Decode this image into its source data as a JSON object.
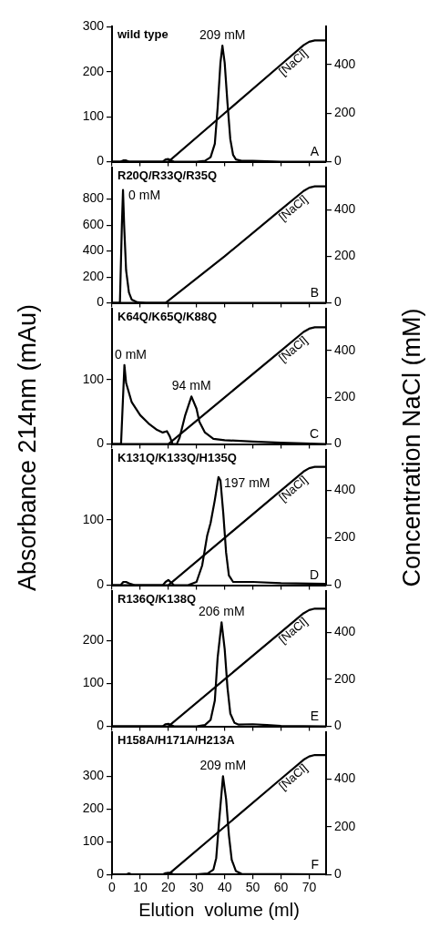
{
  "chart_data": [
    {
      "type": "line",
      "title": "wild type",
      "ylabel": "Absorbance 214nm (mAu)",
      "y2label": "Concentration NaCl (mM)",
      "xlim": [
        0,
        76
      ],
      "xticks": [
        0,
        10,
        20,
        30,
        40,
        50,
        60,
        70
      ],
      "ylim": [
        0,
        300
      ],
      "yticks": [
        0,
        100,
        200,
        300
      ],
      "y2lim": [
        0,
        556
      ],
      "y2ticks": [
        0,
        200,
        400
      ],
      "tick_labels": "y",
      "marker": "none",
      "series": [
        {
          "color": "#000000",
          "x": [
            0,
            3,
            4,
            5,
            6,
            8,
            18,
            19,
            20,
            21,
            22,
            30,
            33,
            35,
            36.5,
            37.5,
            38.5,
            39.2,
            40,
            41,
            42,
            43,
            44,
            46,
            50,
            60,
            76
          ],
          "values": [
            0,
            0,
            3,
            3,
            0,
            0,
            0,
            5,
            6,
            3,
            0,
            0,
            2,
            10,
            40,
            120,
            220,
            258,
            220,
            130,
            50,
            15,
            5,
            2,
            2,
            0,
            0
          ]
        },
        {
          "name": "[NaCl]",
          "axis": "y2",
          "color": "#000000",
          "x": [
            0,
            20,
            40,
            60,
            68,
            70,
            72,
            76
          ],
          "values": [
            0,
            0,
            200,
            400,
            480,
            494,
            500,
            500
          ]
        }
      ],
      "annotations": [
        {
          "text": "209 mM",
          "x": 39.2,
          "y": 258
        },
        "A"
      ]
    },
    {
      "type": "line",
      "title": "R20Q/R33Q/R35Q",
      "xlim": [
        0,
        76
      ],
      "xticks": [
        0,
        10,
        20,
        30,
        40,
        50,
        60,
        70
      ],
      "ylim": [
        0,
        1040
      ],
      "yticks": [
        0,
        200,
        400,
        600,
        800
      ],
      "y2lim": [
        0,
        579
      ],
      "y2ticks": [
        0,
        200,
        400
      ],
      "tick_labels": "y",
      "marker": "none",
      "series": [
        {
          "color": "#000000",
          "x": [
            0,
            2.8,
            3.5,
            3.9,
            4.3,
            5,
            6,
            7,
            9,
            12,
            76
          ],
          "values": [
            0,
            0,
            600,
            870,
            600,
            250,
            80,
            25,
            5,
            0,
            0
          ]
        },
        {
          "name": "[NaCl]",
          "axis": "y2",
          "color": "#000000",
          "x": [
            0,
            19,
            40,
            60,
            68,
            70,
            72,
            76
          ],
          "values": [
            0,
            0,
            200,
            400,
            480,
            494,
            500,
            500
          ]
        }
      ],
      "annotations": [
        {
          "text": "0 mM",
          "x": 3.9,
          "y": 870
        },
        "B"
      ]
    },
    {
      "type": "line",
      "title": "K64Q/K65Q/K88Q",
      "xlim": [
        0,
        76
      ],
      "xticks": [
        0,
        10,
        20,
        30,
        40,
        50,
        60,
        70
      ],
      "ylim": [
        0,
        210
      ],
      "yticks": [
        0,
        100
      ],
      "y2lim": [
        0,
        578
      ],
      "y2ticks": [
        0,
        200,
        400
      ],
      "tick_labels": "y",
      "marker": "none",
      "series": [
        {
          "color": "#000000",
          "x": [
            0,
            3.2,
            4.4,
            5,
            7,
            10,
            13,
            16,
            18,
            19.5,
            20.5,
            21.5,
            23,
            24,
            26,
            28.2,
            30,
            31,
            33,
            36,
            40,
            50,
            60,
            76
          ],
          "values": [
            0,
            0,
            123,
            95,
            65,
            45,
            32,
            22,
            18,
            20,
            12,
            0,
            0,
            10,
            45,
            74,
            55,
            35,
            18,
            8,
            6,
            4,
            2,
            0
          ]
        },
        {
          "name": "[NaCl]",
          "axis": "y2",
          "color": "#000000",
          "x": [
            0,
            20,
            40,
            60,
            68,
            70,
            72,
            76
          ],
          "values": [
            0,
            0,
            200,
            400,
            480,
            494,
            500,
            500
          ]
        }
      ],
      "annotations": [
        {
          "text": "0 mM",
          "x": 4.4,
          "y": 123
        },
        {
          "text": "94 mM",
          "x": 28.2,
          "y": 74
        },
        "C"
      ]
    },
    {
      "type": "line",
      "title": "K131Q/K133Q/H135Q",
      "xlim": [
        0,
        76
      ],
      "xticks": [
        0,
        10,
        20,
        30,
        40,
        50,
        60,
        70
      ],
      "ylim": [
        0,
        206
      ],
      "yticks": [
        0,
        100
      ],
      "y2lim": [
        0,
        570
      ],
      "y2ticks": [
        0,
        200,
        400
      ],
      "tick_labels": "y",
      "marker": "none",
      "series": [
        {
          "color": "#000000",
          "x": [
            0,
            3,
            4,
            5,
            6,
            8,
            18,
            19,
            20,
            21,
            22,
            27,
            30,
            32,
            33.8,
            35,
            36.5,
            37.8,
            38.5,
            39.5,
            40.5,
            41.5,
            43,
            50,
            60,
            76
          ],
          "values": [
            0,
            0,
            5,
            5,
            3,
            0,
            0,
            5,
            8,
            4,
            0,
            0,
            5,
            30,
            76,
            95,
            130,
            165,
            160,
            110,
            50,
            15,
            5,
            5,
            3,
            2
          ]
        },
        {
          "name": "[NaCl]",
          "axis": "y2",
          "color": "#000000",
          "x": [
            0,
            20,
            40,
            60,
            68,
            70,
            72,
            76
          ],
          "values": [
            0,
            0,
            200,
            400,
            480,
            494,
            500,
            500
          ]
        }
      ],
      "annotations": [
        {
          "text": "197 mM",
          "x": 37.8,
          "y": 165
        },
        "D"
      ]
    },
    {
      "type": "line",
      "title": "R136Q/K138Q",
      "xlim": [
        0,
        76
      ],
      "xticks": [
        0,
        10,
        20,
        30,
        40,
        50,
        60,
        70
      ],
      "ylim": [
        0,
        314
      ],
      "yticks": [
        0,
        100,
        200
      ],
      "y2lim": [
        0,
        573
      ],
      "y2ticks": [
        0,
        200,
        400
      ],
      "tick_labels": "y",
      "marker": "none",
      "series": [
        {
          "color": "#000000",
          "x": [
            0,
            18,
            19,
            20,
            21,
            22,
            30,
            33,
            35,
            36.5,
            37.5,
            38.9,
            40,
            41,
            42,
            43.5,
            45,
            50,
            55,
            60,
            76
          ],
          "values": [
            0,
            0,
            5,
            6,
            3,
            0,
            0,
            3,
            15,
            60,
            160,
            242,
            180,
            90,
            30,
            8,
            4,
            5,
            3,
            1,
            0
          ]
        },
        {
          "name": "[NaCl]",
          "axis": "y2",
          "color": "#000000",
          "x": [
            0,
            20,
            40,
            60,
            68,
            70,
            72,
            76
          ],
          "values": [
            0,
            0,
            200,
            400,
            480,
            494,
            500,
            500
          ]
        }
      ],
      "annotations": [
        {
          "text": "206 mM",
          "x": 38.9,
          "y": 242
        },
        "E"
      ]
    },
    {
      "type": "line",
      "title": "H158A/H171A/H213A",
      "xlabel": "Elution  volume (ml)",
      "xlim": [
        0,
        76
      ],
      "xticks": [
        0,
        10,
        20,
        30,
        40,
        50,
        60,
        70
      ],
      "ylim": [
        0,
        433
      ],
      "yticks": [
        0,
        100,
        200,
        300
      ],
      "y2lim": [
        0,
        594
      ],
      "y2ticks": [
        0,
        200,
        400
      ],
      "marker": "none",
      "series": [
        {
          "color": "#000000",
          "x": [
            0,
            5,
            6,
            7,
            18,
            19,
            20,
            21,
            22,
            30,
            34,
            36,
            37,
            38,
            39.4,
            40.5,
            41.5,
            42.5,
            44,
            46,
            76
          ],
          "values": [
            0,
            0,
            3,
            0,
            0,
            4,
            5,
            3,
            0,
            0,
            3,
            15,
            50,
            160,
            300,
            230,
            120,
            45,
            10,
            2,
            0
          ]
        },
        {
          "name": "[NaCl]",
          "axis": "y2",
          "color": "#000000",
          "x": [
            0,
            20,
            40,
            60,
            68,
            70,
            72,
            76
          ],
          "values": [
            0,
            0,
            200,
            400,
            480,
            494,
            500,
            500
          ]
        }
      ],
      "annotations": [
        {
          "text": "209 mM",
          "x": 39.4,
          "y": 300
        },
        "F"
      ]
    }
  ]
}
